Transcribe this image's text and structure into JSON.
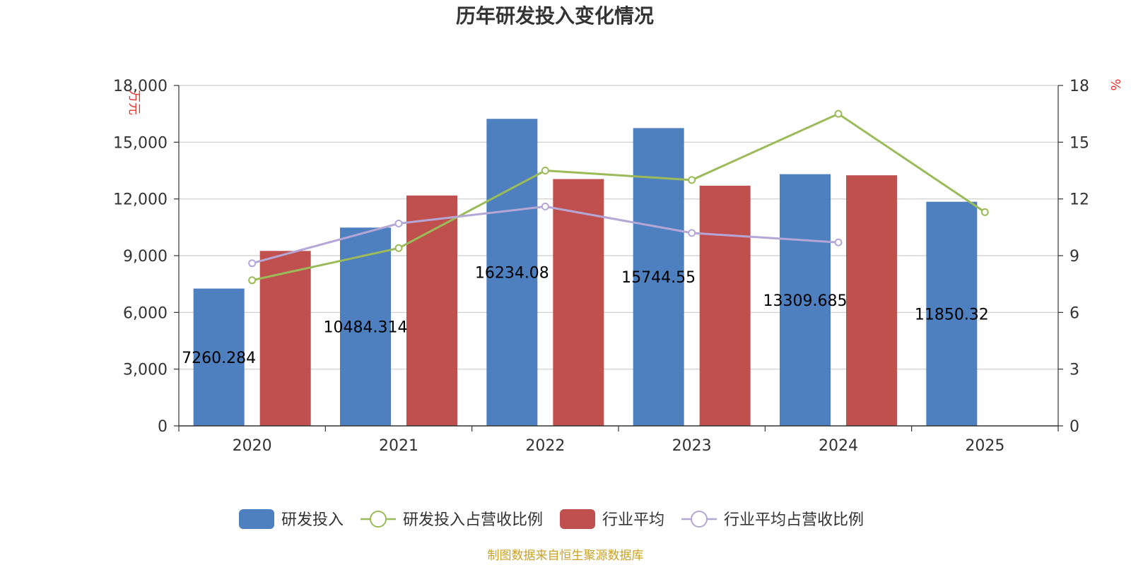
{
  "chart_data": {
    "type": "bar",
    "title": "历年研发投入变化情况",
    "categories": [
      "2020",
      "2021",
      "2022",
      "2023",
      "2024",
      "2025"
    ],
    "series": [
      {
        "name": "研发投入",
        "type": "bar",
        "axis": "left",
        "color": "#4e7fbe",
        "values": [
          7260.284,
          10484.314,
          16234.08,
          15744.55,
          13309.685,
          11850.32
        ],
        "labels": [
          "7260.284",
          "10484.314",
          "16234.08",
          "15744.55",
          "13309.685",
          "11850.32"
        ]
      },
      {
        "name": "研发投入占营收比例",
        "type": "line",
        "axis": "right",
        "color": "#9bbb59",
        "values": [
          7.7,
          9.4,
          13.5,
          13.0,
          16.5,
          11.3
        ]
      },
      {
        "name": "行业平均",
        "type": "bar",
        "axis": "left",
        "color": "#c0504d",
        "values": [
          9250,
          12180,
          13050,
          12700,
          13250,
          null
        ]
      },
      {
        "name": "行业平均占营收比例",
        "type": "line",
        "axis": "right",
        "color": "#b4a7d6",
        "values": [
          8.6,
          10.7,
          11.6,
          10.2,
          9.7,
          null
        ]
      }
    ],
    "y_left": {
      "label": "万元",
      "min": 0,
      "max": 18000,
      "ticks": [
        "0",
        "3,000",
        "6,000",
        "9,000",
        "12,000",
        "15,000",
        "18,000"
      ]
    },
    "y_right": {
      "label": "%",
      "min": 0,
      "max": 18,
      "ticks": [
        "0",
        "3",
        "6",
        "9",
        "12",
        "15",
        "18"
      ]
    },
    "grid": true,
    "legend_position": "bottom",
    "source": "制图数据来自恒生聚源数据库"
  }
}
